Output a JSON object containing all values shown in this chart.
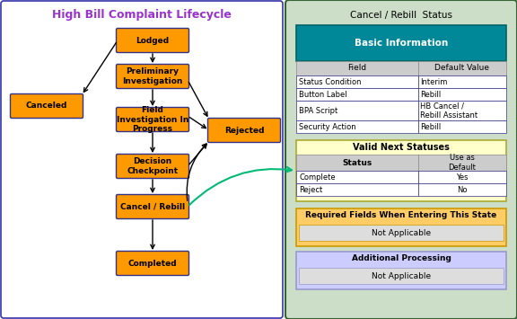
{
  "title": "High Bill Complaint Lifecycle",
  "title_color": "#9933CC",
  "left_box_bg": "#FFFFFF",
  "left_box_border": "#3333AA",
  "node_color": "#FF9900",
  "node_text_color": "#000000",
  "right_panel_bg": "#CCDDC8",
  "right_panel_border": "#336633",
  "right_title": "Cancel / Rebill  Status",
  "basic_info_header_bg": "#008899",
  "basic_info_header_text": "Basic Information",
  "basic_info_header_text_color": "#FFFFFF",
  "col_header_bg": "#CCCCCC",
  "basic_info_rows": [
    [
      "Status Condition",
      "Interim"
    ],
    [
      "Button Label",
      "Rebill"
    ],
    [
      "BPA Script",
      "HB Cancel /\nRebill Assistant"
    ],
    [
      "Security Action",
      "Rebill"
    ]
  ],
  "valid_next_header_bg": "#FFFFCC",
  "valid_next_border": "#AAAA33",
  "valid_next_title": "Valid Next Statuses",
  "valid_next_col_headers": [
    "Status",
    "Use as\nDefault"
  ],
  "valid_next_rows": [
    [
      "Complete",
      "Yes"
    ],
    [
      "Reject",
      "No"
    ]
  ],
  "required_fields_header_bg": "#FFCC66",
  "required_fields_border": "#CC9900",
  "required_fields_title": "Required Fields When Entering This State",
  "required_fields_value": "Not Applicable",
  "additional_processing_header_bg": "#CCCCFF",
  "additional_processing_border": "#9999CC",
  "additional_processing_title": "Additional Processing",
  "additional_processing_value": "Not Applicable",
  "arrow_curve_color": "#00BB77"
}
